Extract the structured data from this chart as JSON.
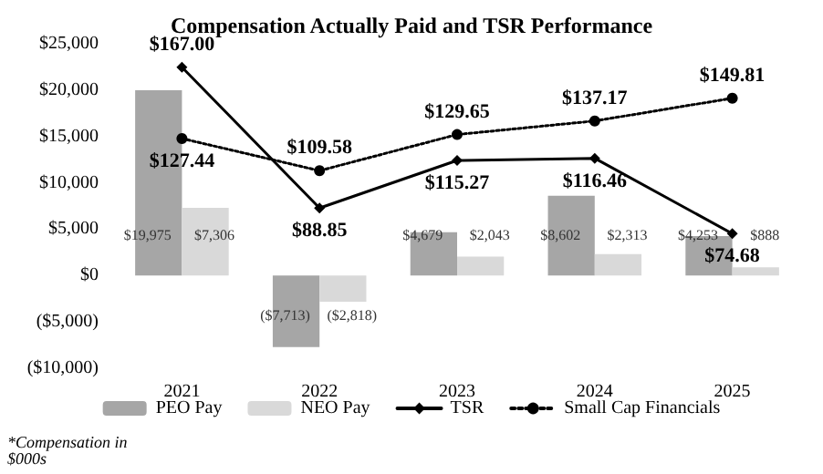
{
  "chart_data": {
    "type": "bar",
    "title": "Compensation Actually Paid and TSR Performance",
    "categories": [
      "2021",
      "2022",
      "2023",
      "2024",
      "2025"
    ],
    "series": [
      {
        "name": "PEO Pay",
        "color": "#a6a6a6",
        "values": [
          19975,
          -7713,
          4679,
          8602,
          4253
        ],
        "value_labels": [
          "$19,975",
          "($7,713)",
          "$4,679",
          "$8,602",
          "$4,253"
        ]
      },
      {
        "name": "NEO Pay",
        "color": "#d9d9d9",
        "values": [
          7306,
          -2818,
          2043,
          2313,
          888
        ],
        "value_labels": [
          "$7,306",
          "($2,818)",
          "$2,043",
          "$2,313",
          "$888"
        ]
      },
      {
        "name": "TSR",
        "type": "line",
        "axis": "y2",
        "color": "#000000",
        "marker": "diamond",
        "line_style": "solid",
        "values": [
          167.0,
          88.85,
          115.27,
          116.46,
          74.68
        ],
        "value_labels": [
          "$167.00",
          "$88.85",
          "$115.27",
          "$116.46",
          "$74.68"
        ]
      },
      {
        "name": "Small Cap Financials",
        "type": "line",
        "axis": "y2",
        "color": "#000000",
        "marker": "circle",
        "line_style": "dotted",
        "values": [
          127.44,
          109.58,
          129.65,
          137.17,
          149.81
        ],
        "value_labels": [
          "$127.44",
          "$109.58",
          "$129.65",
          "$137.17",
          "$149.81"
        ]
      }
    ],
    "ylim": [
      -10000,
      25000
    ],
    "yticks": [
      {
        "value": -10000,
        "label": "($10,000)"
      },
      {
        "value": -5000,
        "label": "($5,000)"
      },
      {
        "value": 0,
        "label": "$0"
      },
      {
        "value": 5000,
        "label": "$5,000"
      },
      {
        "value": 10000,
        "label": "$10,000"
      },
      {
        "value": 15000,
        "label": "$15,000"
      },
      {
        "value": 20000,
        "label": "$20,000"
      },
      {
        "value": 25000,
        "label": "$25,000"
      }
    ],
    "grid": false,
    "legend": "bottom",
    "annotations": [
      "*Compensation in $000s"
    ]
  }
}
